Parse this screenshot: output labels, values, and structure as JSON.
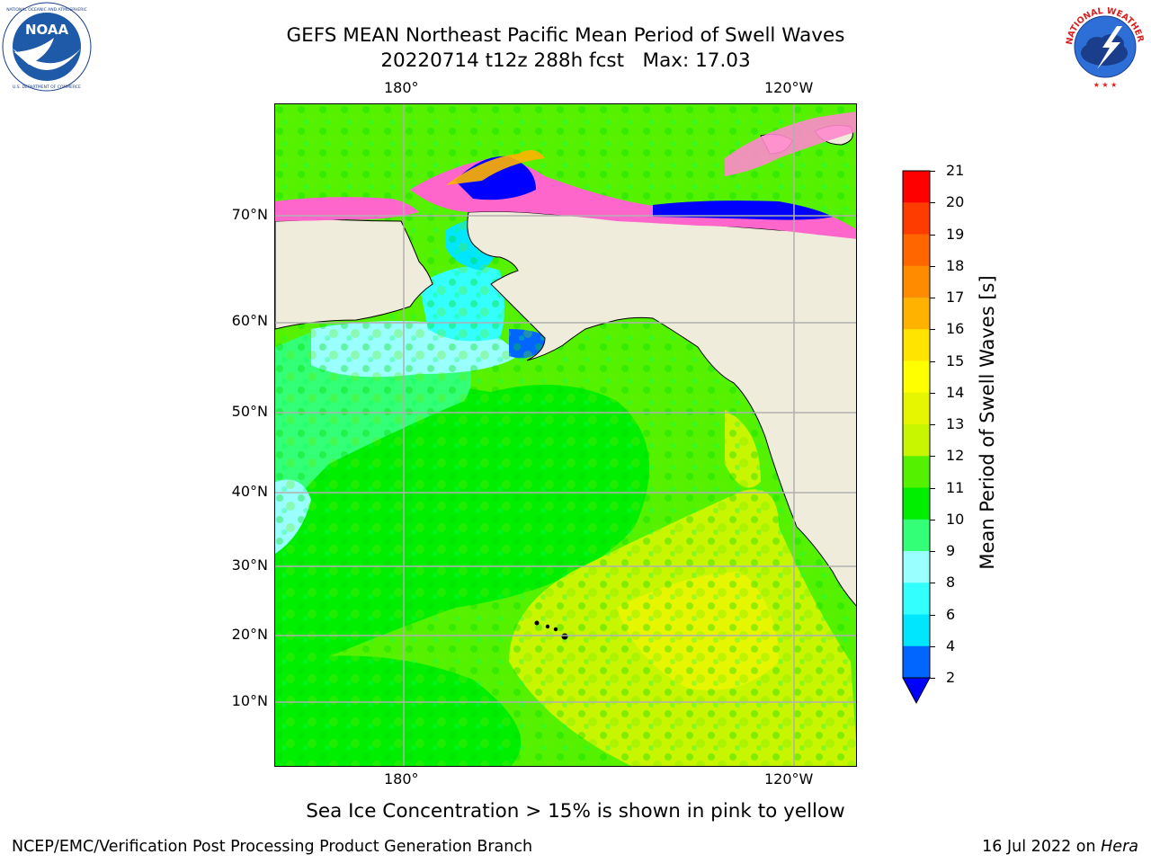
{
  "title": {
    "line1": "GEFS MEAN Northeast Pacific Mean Period of Swell Waves",
    "line2": "20220714 t12z 288h fcst   Max: 17.03"
  },
  "logos": {
    "noaa": {
      "icon": "noaa-logo",
      "text": "NOAA",
      "ring_text": "NATIONAL OCEANIC AND ATMOSPHERIC ADMINISTRATION · U.S. DEPARTMENT OF COMMERCE"
    },
    "nws": {
      "icon": "nws-logo",
      "ring_text": "NATIONAL WEATHER SERVICE"
    }
  },
  "map": {
    "projection": "cylindrical",
    "lon_labels": [
      "180°",
      "120°W"
    ],
    "lat_labels": [
      "70°N",
      "60°N",
      "50°N",
      "40°N",
      "30°N",
      "20°N",
      "10°N"
    ],
    "colors": {
      "land": "#efecdb",
      "coastline": "#000000",
      "gridlines": "#b0b0b0"
    }
  },
  "colorbar": {
    "label": "Mean Period of Swell Waves [s]",
    "ticks": [
      "21",
      "20",
      "19",
      "18",
      "17",
      "16",
      "15",
      "14",
      "13",
      "12",
      "11",
      "10",
      "9",
      "8",
      "6",
      "4",
      "2"
    ],
    "bands": [
      {
        "range": "below 2",
        "color": "#0000ff"
      },
      {
        "range": "2-4",
        "color": "#0066ff"
      },
      {
        "range": "4-6",
        "color": "#00e6ff"
      },
      {
        "range": "6-8",
        "color": "#33ffff"
      },
      {
        "range": "8-9",
        "color": "#99ffff"
      },
      {
        "range": "9-10",
        "color": "#33ff77"
      },
      {
        "range": "10-11",
        "color": "#00ee00"
      },
      {
        "range": "11-12",
        "color": "#55f200"
      },
      {
        "range": "12-13",
        "color": "#c8f500"
      },
      {
        "range": "13-14",
        "color": "#e6f500"
      },
      {
        "range": "14-15",
        "color": "#ffff00"
      },
      {
        "range": "15-16",
        "color": "#ffe400"
      },
      {
        "range": "16-17",
        "color": "#ffb300"
      },
      {
        "range": "17-18",
        "color": "#ff8c00"
      },
      {
        "range": "18-19",
        "color": "#ff6600"
      },
      {
        "range": "19-20",
        "color": "#ff3c00"
      },
      {
        "range": "20-21",
        "color": "#ff0000"
      }
    ]
  },
  "caption": "Sea Ice Concentration > 15% is shown in pink to yellow",
  "footer": {
    "credit": "NCEP/EMC/Verification Post Processing Product Generation Branch",
    "date_text": "16 Jul 2022 on ",
    "host": "Hera"
  }
}
